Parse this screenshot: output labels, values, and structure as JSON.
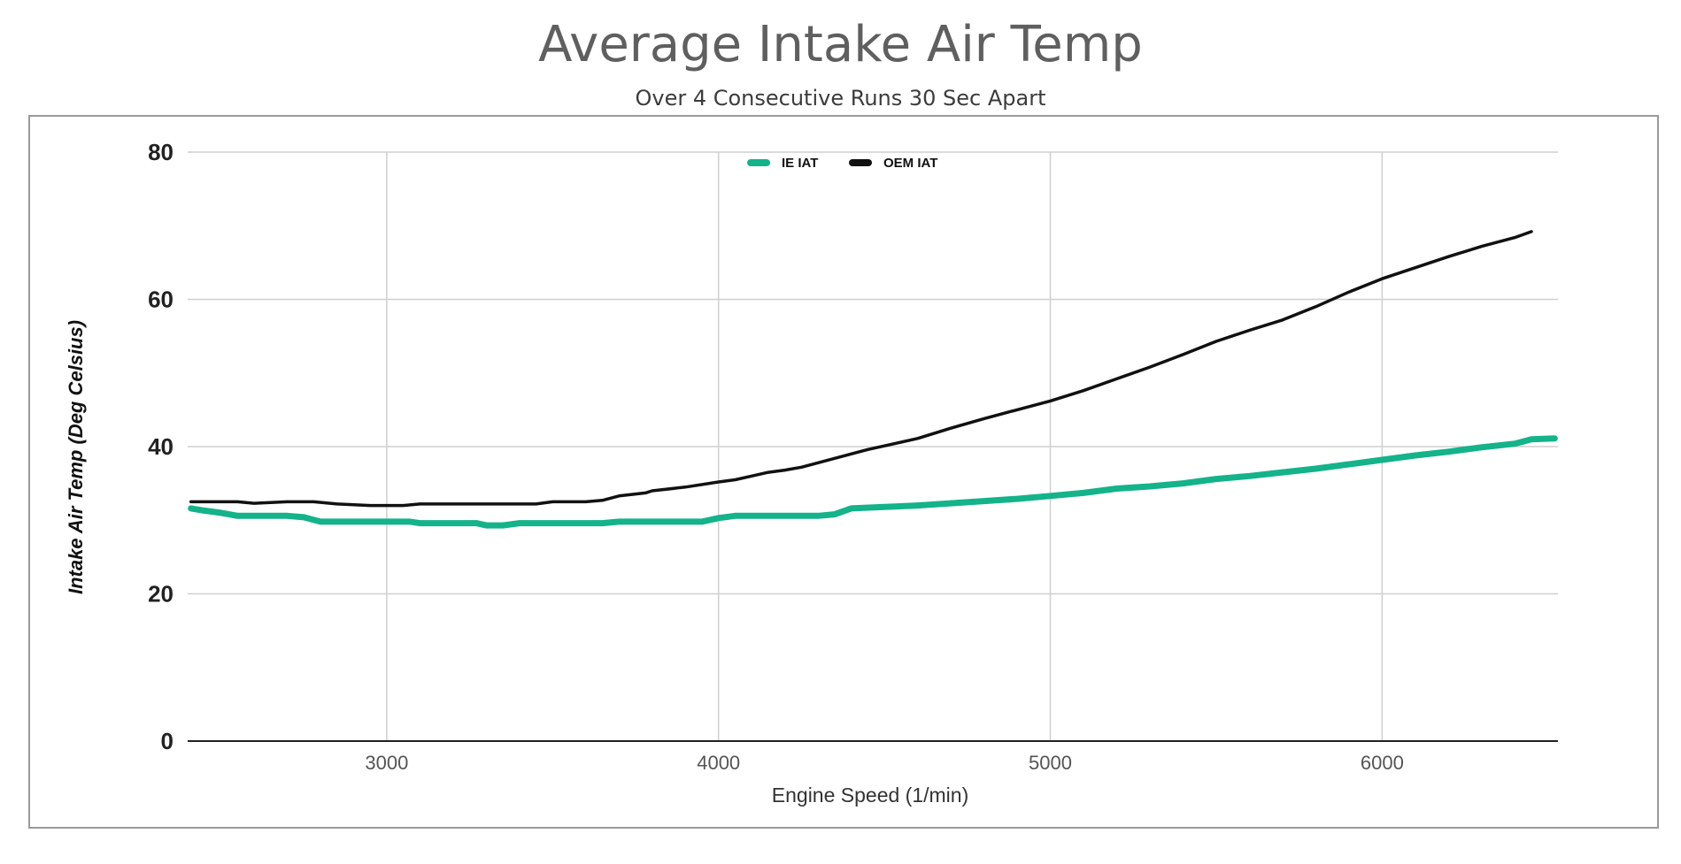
{
  "chart_data": {
    "type": "line",
    "title": "Average Intake Air Temp",
    "subtitle": "Over 4 Consecutive Runs 30 Sec Apart",
    "xlabel": "Engine Speed (1/min)",
    "ylabel": "Intake Air Temp (Deg Celsius)",
    "xlim": [
      2400,
      6530
    ],
    "ylim": [
      0,
      80
    ],
    "xticks": [
      "3000",
      "4000",
      "5000",
      "6000"
    ],
    "xtick_values": [
      3000,
      4000,
      5000,
      6000
    ],
    "yticks": [
      "0",
      "20",
      "40",
      "60",
      "80"
    ],
    "ytick_values": [
      0,
      20,
      40,
      60,
      80
    ],
    "grid": true,
    "legend_position": "top-center",
    "series": [
      {
        "name": "IE IAT",
        "color": "#14b38a",
        "x": [
          2410,
          2450,
          2500,
          2550,
          2600,
          2700,
          2750,
          2800,
          2900,
          3000,
          3070,
          3100,
          3200,
          3270,
          3300,
          3350,
          3400,
          3450,
          3500,
          3600,
          3650,
          3700,
          3800,
          3900,
          3950,
          4000,
          4050,
          4100,
          4200,
          4300,
          4350,
          4400,
          4500,
          4600,
          4700,
          4800,
          4900,
          5000,
          5100,
          5200,
          5300,
          5400,
          5500,
          5600,
          5700,
          5800,
          5900,
          6000,
          6100,
          6200,
          6300,
          6400,
          6450,
          6520
        ],
        "y": [
          31.6,
          31.3,
          31.0,
          30.6,
          30.6,
          30.6,
          30.4,
          29.8,
          29.8,
          29.8,
          29.8,
          29.6,
          29.6,
          29.6,
          29.3,
          29.3,
          29.6,
          29.6,
          29.6,
          29.6,
          29.6,
          29.8,
          29.8,
          29.8,
          29.8,
          30.3,
          30.6,
          30.6,
          30.6,
          30.6,
          30.8,
          31.6,
          31.8,
          32.0,
          32.3,
          32.6,
          32.9,
          33.3,
          33.7,
          34.3,
          34.6,
          35.0,
          35.6,
          36.0,
          36.5,
          37.0,
          37.6,
          38.2,
          38.8,
          39.3,
          39.9,
          40.4,
          41.0,
          41.1
        ]
      },
      {
        "name": "OEM IAT",
        "color": "#111111",
        "x": [
          2410,
          2450,
          2500,
          2550,
          2600,
          2700,
          2780,
          2850,
          2950,
          3050,
          3100,
          3200,
          3300,
          3400,
          3450,
          3500,
          3600,
          3650,
          3700,
          3780,
          3800,
          3900,
          4000,
          4050,
          4100,
          4150,
          4200,
          4250,
          4300,
          4350,
          4400,
          4450,
          4500,
          4600,
          4700,
          4800,
          4900,
          5000,
          5100,
          5200,
          5300,
          5400,
          5500,
          5600,
          5700,
          5800,
          5900,
          6000,
          6100,
          6200,
          6300,
          6400,
          6450
        ],
        "y": [
          32.5,
          32.5,
          32.5,
          32.5,
          32.3,
          32.5,
          32.5,
          32.2,
          32.0,
          32.0,
          32.2,
          32.2,
          32.2,
          32.2,
          32.2,
          32.5,
          32.5,
          32.7,
          33.3,
          33.7,
          34.0,
          34.5,
          35.2,
          35.5,
          36.0,
          36.5,
          36.8,
          37.2,
          37.8,
          38.4,
          39.0,
          39.6,
          40.1,
          41.1,
          42.5,
          43.8,
          45.0,
          46.2,
          47.6,
          49.2,
          50.8,
          52.5,
          54.3,
          55.8,
          57.2,
          59.0,
          61.0,
          62.8,
          64.3,
          65.8,
          67.2,
          68.4,
          69.2
        ]
      }
    ]
  }
}
